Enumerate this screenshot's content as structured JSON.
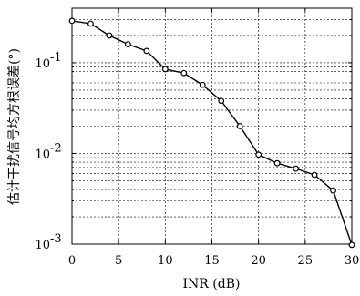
{
  "chart_data": {
    "type": "line",
    "xlabel": "INR (dB)",
    "ylabel": "估计干扰信号均方根误差(°)",
    "xlim": [
      0,
      30
    ],
    "ylim": [
      0.001,
      0.4
    ],
    "y_scale": "log",
    "grid": true,
    "x_ticks": [
      "0",
      "5",
      "10",
      "15",
      "20",
      "25",
      "30"
    ],
    "y_ticks": [
      {
        "base": "10",
        "exp": "-3"
      },
      {
        "base": "10",
        "exp": "-2"
      },
      {
        "base": "10",
        "exp": "-1"
      }
    ],
    "series": [
      {
        "x": [
          0,
          2,
          4,
          6,
          8,
          10,
          12,
          14,
          16,
          18,
          20,
          22,
          24,
          26,
          28,
          30
        ],
        "y": [
          0.29,
          0.27,
          0.2,
          0.16,
          0.135,
          0.085,
          0.077,
          0.057,
          0.038,
          0.02,
          0.0097,
          0.0078,
          0.0068,
          0.0058,
          0.0039,
          0.00098
        ],
        "marker": "circle",
        "color": "#000000"
      }
    ]
  }
}
